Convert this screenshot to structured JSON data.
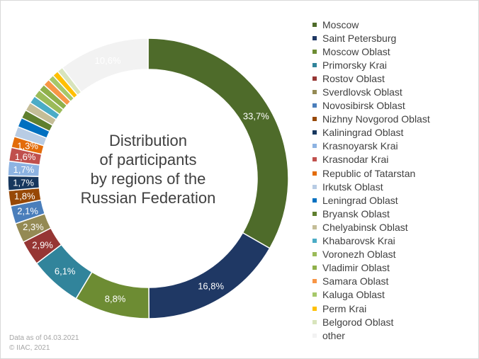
{
  "chart_data": {
    "type": "pie",
    "variant": "donut",
    "start_angle_deg": 0,
    "direction": "clockwise",
    "title_lines": [
      "Distribution",
      "of participants",
      "by regions of the",
      "Russian Federation"
    ],
    "legend_placement": "right",
    "series": [
      {
        "name": "Moscow",
        "value": 33.7,
        "label": "33,7%",
        "color": "#4e6b2a"
      },
      {
        "name": "Saint Petersburg",
        "value": 16.8,
        "label": "16,8%",
        "color": "#1f3864"
      },
      {
        "name": "Moscow Oblast",
        "value": 8.8,
        "label": "8,8%",
        "color": "#6d8c33"
      },
      {
        "name": "Primorsky Krai",
        "value": 6.1,
        "label": "6,1%",
        "color": "#31849b"
      },
      {
        "name": "Rostov Oblast",
        "value": 2.9,
        "label": "2,9%",
        "color": "#963634"
      },
      {
        "name": "Sverdlovsk Oblast",
        "value": 2.3,
        "label": "2,3%",
        "color": "#948a54"
      },
      {
        "name": "Novosibirsk Oblast",
        "value": 2.1,
        "label": "2,1%",
        "color": "#4a7ebb"
      },
      {
        "name": "Nizhny Novgorod Oblast",
        "value": 1.8,
        "label": "1,8%",
        "color": "#974806"
      },
      {
        "name": "Kaliningrad Oblast",
        "value": 1.7,
        "label": "1,7%",
        "color": "#17375e"
      },
      {
        "name": "Krasnoyarsk Krai",
        "value": 1.7,
        "label": "1,7%",
        "color": "#8db3e2"
      },
      {
        "name": "Krasnodar Krai",
        "value": 1.6,
        "label": "1,6%",
        "color": "#c0504d"
      },
      {
        "name": "Republic of Tatarstan",
        "value": 1.3,
        "label": "1,3%",
        "color": "#e36c09"
      },
      {
        "name": "Irkutsk Oblast",
        "value": 1.2,
        "label": "",
        "color": "#b8cce4"
      },
      {
        "name": "Leningrad Oblast",
        "value": 1.1,
        "label": "",
        "color": "#0070c0"
      },
      {
        "name": "Bryansk Oblast",
        "value": 1.0,
        "label": "",
        "color": "#5f7f2e"
      },
      {
        "name": "Chelyabinsk Oblast",
        "value": 1.0,
        "label": "",
        "color": "#c4bd97"
      },
      {
        "name": "Khabarovsk Krai",
        "value": 0.9,
        "label": "",
        "color": "#4bacc6"
      },
      {
        "name": "Voronezh Oblast",
        "value": 0.9,
        "label": "",
        "color": "#9bbb59"
      },
      {
        "name": "Vladimir Oblast",
        "value": 0.8,
        "label": "",
        "color": "#8fb04a"
      },
      {
        "name": "Samara Oblast",
        "value": 0.8,
        "label": "",
        "color": "#f79646"
      },
      {
        "name": "Kaluga Oblast",
        "value": 0.7,
        "label": "",
        "color": "#a6c86a"
      },
      {
        "name": "Perm Krai",
        "value": 0.7,
        "label": "",
        "color": "#ffc000"
      },
      {
        "name": "Belgorod Oblast",
        "value": 0.7,
        "label": "",
        "color": "#d8e4bc"
      },
      {
        "name": "other",
        "value": 10.6,
        "label": "10,6%",
        "color": "#f2f2f2"
      }
    ]
  },
  "source_note": {
    "line1": "Data as of 04.03.2021",
    "line2": "© IIAC, 2021"
  }
}
